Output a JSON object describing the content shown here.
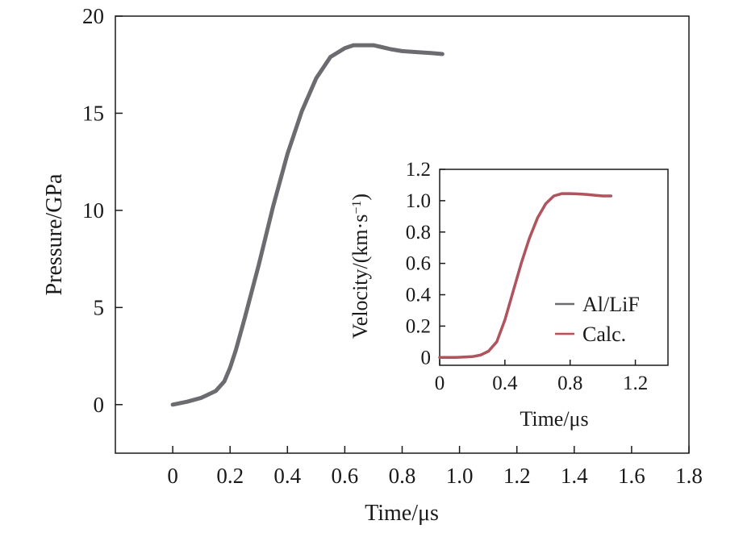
{
  "chart_data": [
    {
      "type": "line",
      "role": "main",
      "title": "",
      "xlabel": "Time/μs",
      "ylabel": "Pressure/GPa",
      "xlim": [
        -0.2,
        1.8
      ],
      "ylim": [
        -2.5,
        20
      ],
      "xticks": [
        0,
        0.2,
        0.4,
        0.6,
        0.8,
        1.0,
        1.2,
        1.4,
        1.6,
        1.8
      ],
      "xtick_labels": [
        "0",
        "0.2",
        "0.4",
        "0.6",
        "0.8",
        "1.0",
        "1.2",
        "1.4",
        "1.6",
        "1.8"
      ],
      "yticks": [
        0,
        5,
        10,
        15,
        20
      ],
      "ytick_labels": [
        "0",
        "5",
        "10",
        "15",
        "20"
      ],
      "grid": false,
      "series": [
        {
          "name": "Pressure",
          "color": "#6b6b70",
          "x": [
            0,
            0.05,
            0.1,
            0.15,
            0.18,
            0.2,
            0.22,
            0.25,
            0.3,
            0.35,
            0.4,
            0.45,
            0.5,
            0.55,
            0.6,
            0.63,
            0.66,
            0.7,
            0.73,
            0.76,
            0.8,
            0.85,
            0.9,
            0.94
          ],
          "values": [
            0,
            0.15,
            0.35,
            0.7,
            1.2,
            1.9,
            2.8,
            4.4,
            7.2,
            10.2,
            12.9,
            15.1,
            16.8,
            17.9,
            18.35,
            18.5,
            18.5,
            18.5,
            18.4,
            18.3,
            18.2,
            18.15,
            18.1,
            18.05
          ]
        }
      ]
    },
    {
      "type": "line",
      "role": "inset",
      "title": "",
      "xlabel": "Time/μs",
      "ylabel": "Velocity/(km·s⁻¹)",
      "ylabel_parts": [
        "Velocity/(km·s",
        "−1",
        ")"
      ],
      "xlim": [
        0,
        1.4
      ],
      "ylim": [
        -0.05,
        1.2
      ],
      "xticks": [
        0,
        0.4,
        0.8,
        1.2
      ],
      "xtick_labels": [
        "0",
        "0.4",
        "0.8",
        "1.2"
      ],
      "yticks": [
        0,
        0.2,
        0.4,
        0.6,
        0.8,
        1.0,
        1.2
      ],
      "ytick_labels": [
        "0",
        "0.2",
        "0.4",
        "0.6",
        "0.8",
        "1.0",
        "1.2"
      ],
      "grid": false,
      "legend": {
        "position": "bottom-right"
      },
      "series": [
        {
          "name": "Al/LiF",
          "color": "#6b6b70",
          "x": [
            0,
            0.1,
            0.2,
            0.25,
            0.3,
            0.35,
            0.4,
            0.45,
            0.5,
            0.55,
            0.6,
            0.65,
            0.7,
            0.75,
            0.8,
            0.85,
            0.9,
            0.95,
            1.0,
            1.05
          ],
          "values": [
            0,
            0,
            0.005,
            0.015,
            0.04,
            0.1,
            0.24,
            0.42,
            0.6,
            0.76,
            0.89,
            0.98,
            1.03,
            1.045,
            1.045,
            1.043,
            1.04,
            1.035,
            1.03,
            1.03
          ]
        },
        {
          "name": "Calc.",
          "color": "#d9434f",
          "x": [
            0,
            0.1,
            0.2,
            0.25,
            0.3,
            0.35,
            0.4,
            0.45,
            0.5,
            0.55,
            0.6,
            0.65,
            0.7,
            0.75,
            0.8,
            0.85,
            0.9,
            0.95,
            1.0,
            1.05
          ],
          "values": [
            0,
            0,
            0.005,
            0.015,
            0.04,
            0.1,
            0.24,
            0.42,
            0.6,
            0.76,
            0.89,
            0.98,
            1.03,
            1.045,
            1.045,
            1.043,
            1.04,
            1.035,
            1.03,
            1.03
          ]
        }
      ]
    }
  ]
}
